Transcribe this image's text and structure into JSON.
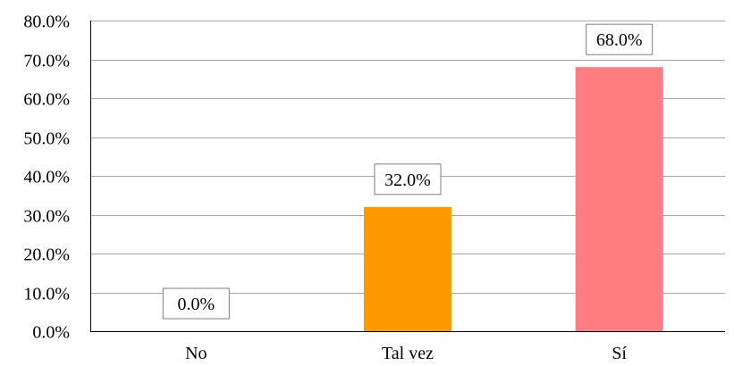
{
  "chart_data": {
    "type": "bar",
    "categories": [
      "No",
      "Tal vez",
      "Sí"
    ],
    "values": [
      0.0,
      32.0,
      68.0
    ],
    "value_labels": [
      "0.0%",
      "32.0%",
      "68.0%"
    ],
    "colors": [
      "#ffffff",
      "#ff9900",
      "#ff7c80"
    ],
    "ylim": [
      0,
      80
    ],
    "yticks": [
      0,
      10,
      20,
      30,
      40,
      50,
      60,
      70,
      80
    ],
    "ytick_labels": [
      "0.0%",
      "10.0%",
      "20.0%",
      "30.0%",
      "40.0%",
      "50.0%",
      "60.0%",
      "70.0%",
      "80.0%"
    ],
    "grid": true,
    "legend": "none"
  }
}
